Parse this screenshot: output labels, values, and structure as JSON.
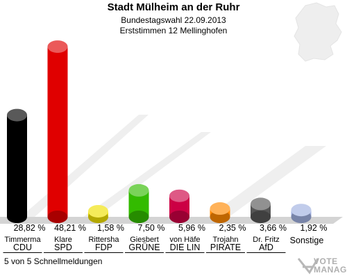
{
  "header": {
    "title": "Stadt Mülheim an der Ruhr",
    "subtitle": "Bundestagswahl 22.09.2013",
    "subtitle2": "Erststimmen 12 Mellinghofen"
  },
  "footer": {
    "text": "5 von 5 Schnellmeldungen"
  },
  "logo": {
    "line1": "VOTE",
    "line2": "MANAGER"
  },
  "chart_data": {
    "type": "bar",
    "title": "Stadt Mülheim an der Ruhr",
    "ylim": [
      0,
      50
    ],
    "grid": false,
    "categories": [
      "CDU",
      "SPD",
      "FDP",
      "GRÜNE",
      "DIE LIN",
      "PIRATE",
      "AfD",
      "Sonstige"
    ],
    "candidates": [
      "Timmerma",
      "Klare",
      "Rittersha",
      "Giesbert",
      "von Häfe",
      "Trojahn",
      "Dr. Fritz",
      ""
    ],
    "values": [
      28.82,
      48.21,
      1.58,
      7.5,
      5.96,
      2.35,
      3.66,
      1.92
    ],
    "value_labels": [
      "28,82 %",
      "48,21 %",
      "1,58 %",
      "7,50 %",
      "5,96 %",
      "2,35 %",
      "3,66 %",
      "1,92 %"
    ],
    "colors": [
      "#000000",
      "#e00000",
      "#f0e000",
      "#33bb00",
      "#cc0044",
      "#ff8800",
      "#555555",
      "#a0b0e0"
    ]
  }
}
